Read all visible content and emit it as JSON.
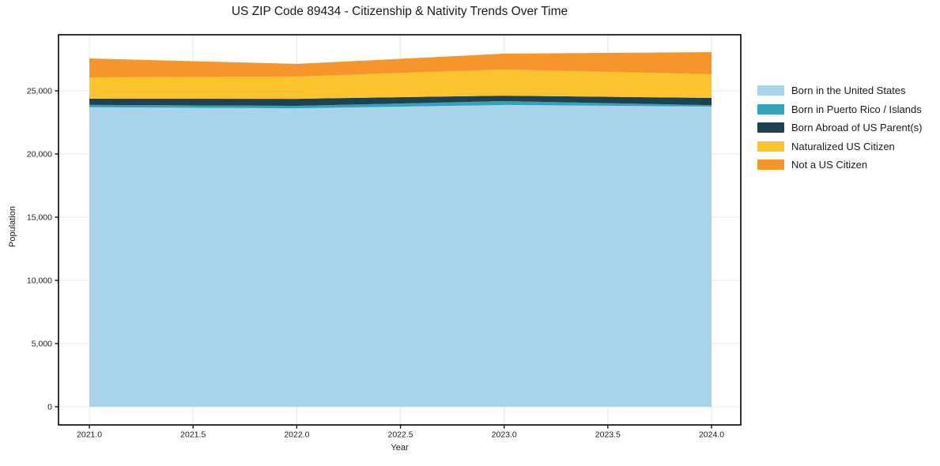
{
  "title": "US ZIP Code 89434 - Citizenship & Nativity Trends Over Time",
  "chart_data": {
    "type": "area",
    "stacked": true,
    "title": "US ZIP Code 89434 - Citizenship & Nativity Trends Over Time",
    "xlabel": "Year",
    "ylabel": "Population",
    "x": [
      2021,
      2022,
      2023,
      2024
    ],
    "series": [
      {
        "name": "Born in the United States",
        "color": "#a8d3e8",
        "values": [
          23700,
          23620,
          23880,
          23750
        ]
      },
      {
        "name": "Born in Puerto Rico / Islands",
        "color": "#35a2bc",
        "values": [
          190,
          190,
          310,
          110
        ]
      },
      {
        "name": "Born Abroad of US Parent(s)",
        "color": "#1d4251",
        "values": [
          490,
          560,
          430,
          580
        ]
      },
      {
        "name": "Naturalized US Citizen",
        "color": "#fdc32e",
        "values": [
          1680,
          1760,
          2070,
          1870
        ]
      },
      {
        "name": "Not a US Citizen",
        "color": "#f7952d",
        "values": [
          1500,
          1000,
          1250,
          1750
        ]
      }
    ],
    "xlim": [
      2020.851,
      2024.141
    ],
    "ylim": [
      -1437.5,
      29437.5
    ],
    "xticks": {
      "values": [
        2021.0,
        2021.5,
        2022.0,
        2022.5,
        2023.0,
        2023.5,
        2024.0
      ],
      "labels": [
        "2021.0",
        "2021.5",
        "2022.0",
        "2022.5",
        "2023.0",
        "2023.5",
        "2024.0"
      ]
    },
    "yticks": {
      "values": [
        0,
        5000,
        10000,
        15000,
        20000,
        25000
      ],
      "labels": [
        "0",
        "5,000",
        "10,000",
        "15,000",
        "20,000",
        "25,000"
      ]
    },
    "grid": true,
    "grid_color": "#e8e8e8",
    "spine_color": "#000000",
    "legend_position": "right-outside"
  }
}
